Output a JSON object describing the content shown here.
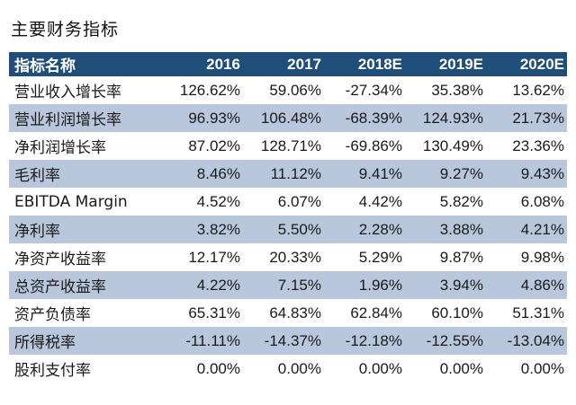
{
  "title": "主要财务指标",
  "table": {
    "headers": [
      "指标名称",
      "2016",
      "2017",
      "2018E",
      "2019E",
      "2020E"
    ],
    "rows": [
      {
        "label": "营业收入增长率",
        "values": [
          "126.62%",
          "59.06%",
          "-27.34%",
          "35.38%",
          "13.62%"
        ]
      },
      {
        "label": "营业利润增长率",
        "values": [
          "96.93%",
          "106.48%",
          "-68.39%",
          "124.93%",
          "21.73%"
        ]
      },
      {
        "label": "净利润增长率",
        "values": [
          "87.02%",
          "128.71%",
          "-69.86%",
          "130.49%",
          "23.36%"
        ]
      },
      {
        "label": "毛利率",
        "values": [
          "8.46%",
          "11.12%",
          "9.41%",
          "9.27%",
          "9.43%"
        ]
      },
      {
        "label": "EBITDA Margin",
        "values": [
          "4.52%",
          "6.07%",
          "4.42%",
          "5.82%",
          "6.08%"
        ]
      },
      {
        "label": "净利率",
        "values": [
          "3.82%",
          "5.50%",
          "2.28%",
          "3.88%",
          "4.21%"
        ]
      },
      {
        "label": "净资产收益率",
        "values": [
          "12.17%",
          "20.33%",
          "5.29%",
          "9.87%",
          "9.98%"
        ]
      },
      {
        "label": "总资产收益率",
        "values": [
          "4.22%",
          "7.15%",
          "1.96%",
          "3.94%",
          "4.86%"
        ]
      },
      {
        "label": "资产负债率",
        "values": [
          "65.31%",
          "64.83%",
          "62.84%",
          "60.10%",
          "51.31%"
        ]
      },
      {
        "label": "所得税率",
        "values": [
          "-11.11%",
          "-14.37%",
          "-12.18%",
          "-12.55%",
          "-13.04%"
        ]
      },
      {
        "label": "股利支付率",
        "values": [
          "0.00%",
          "0.00%",
          "0.00%",
          "0.00%",
          "0.00%"
        ]
      }
    ]
  },
  "colors": {
    "header_bg": "#1f4e79",
    "header_text": "#ffffff",
    "alt_row_bg": "#b8c7dc"
  }
}
